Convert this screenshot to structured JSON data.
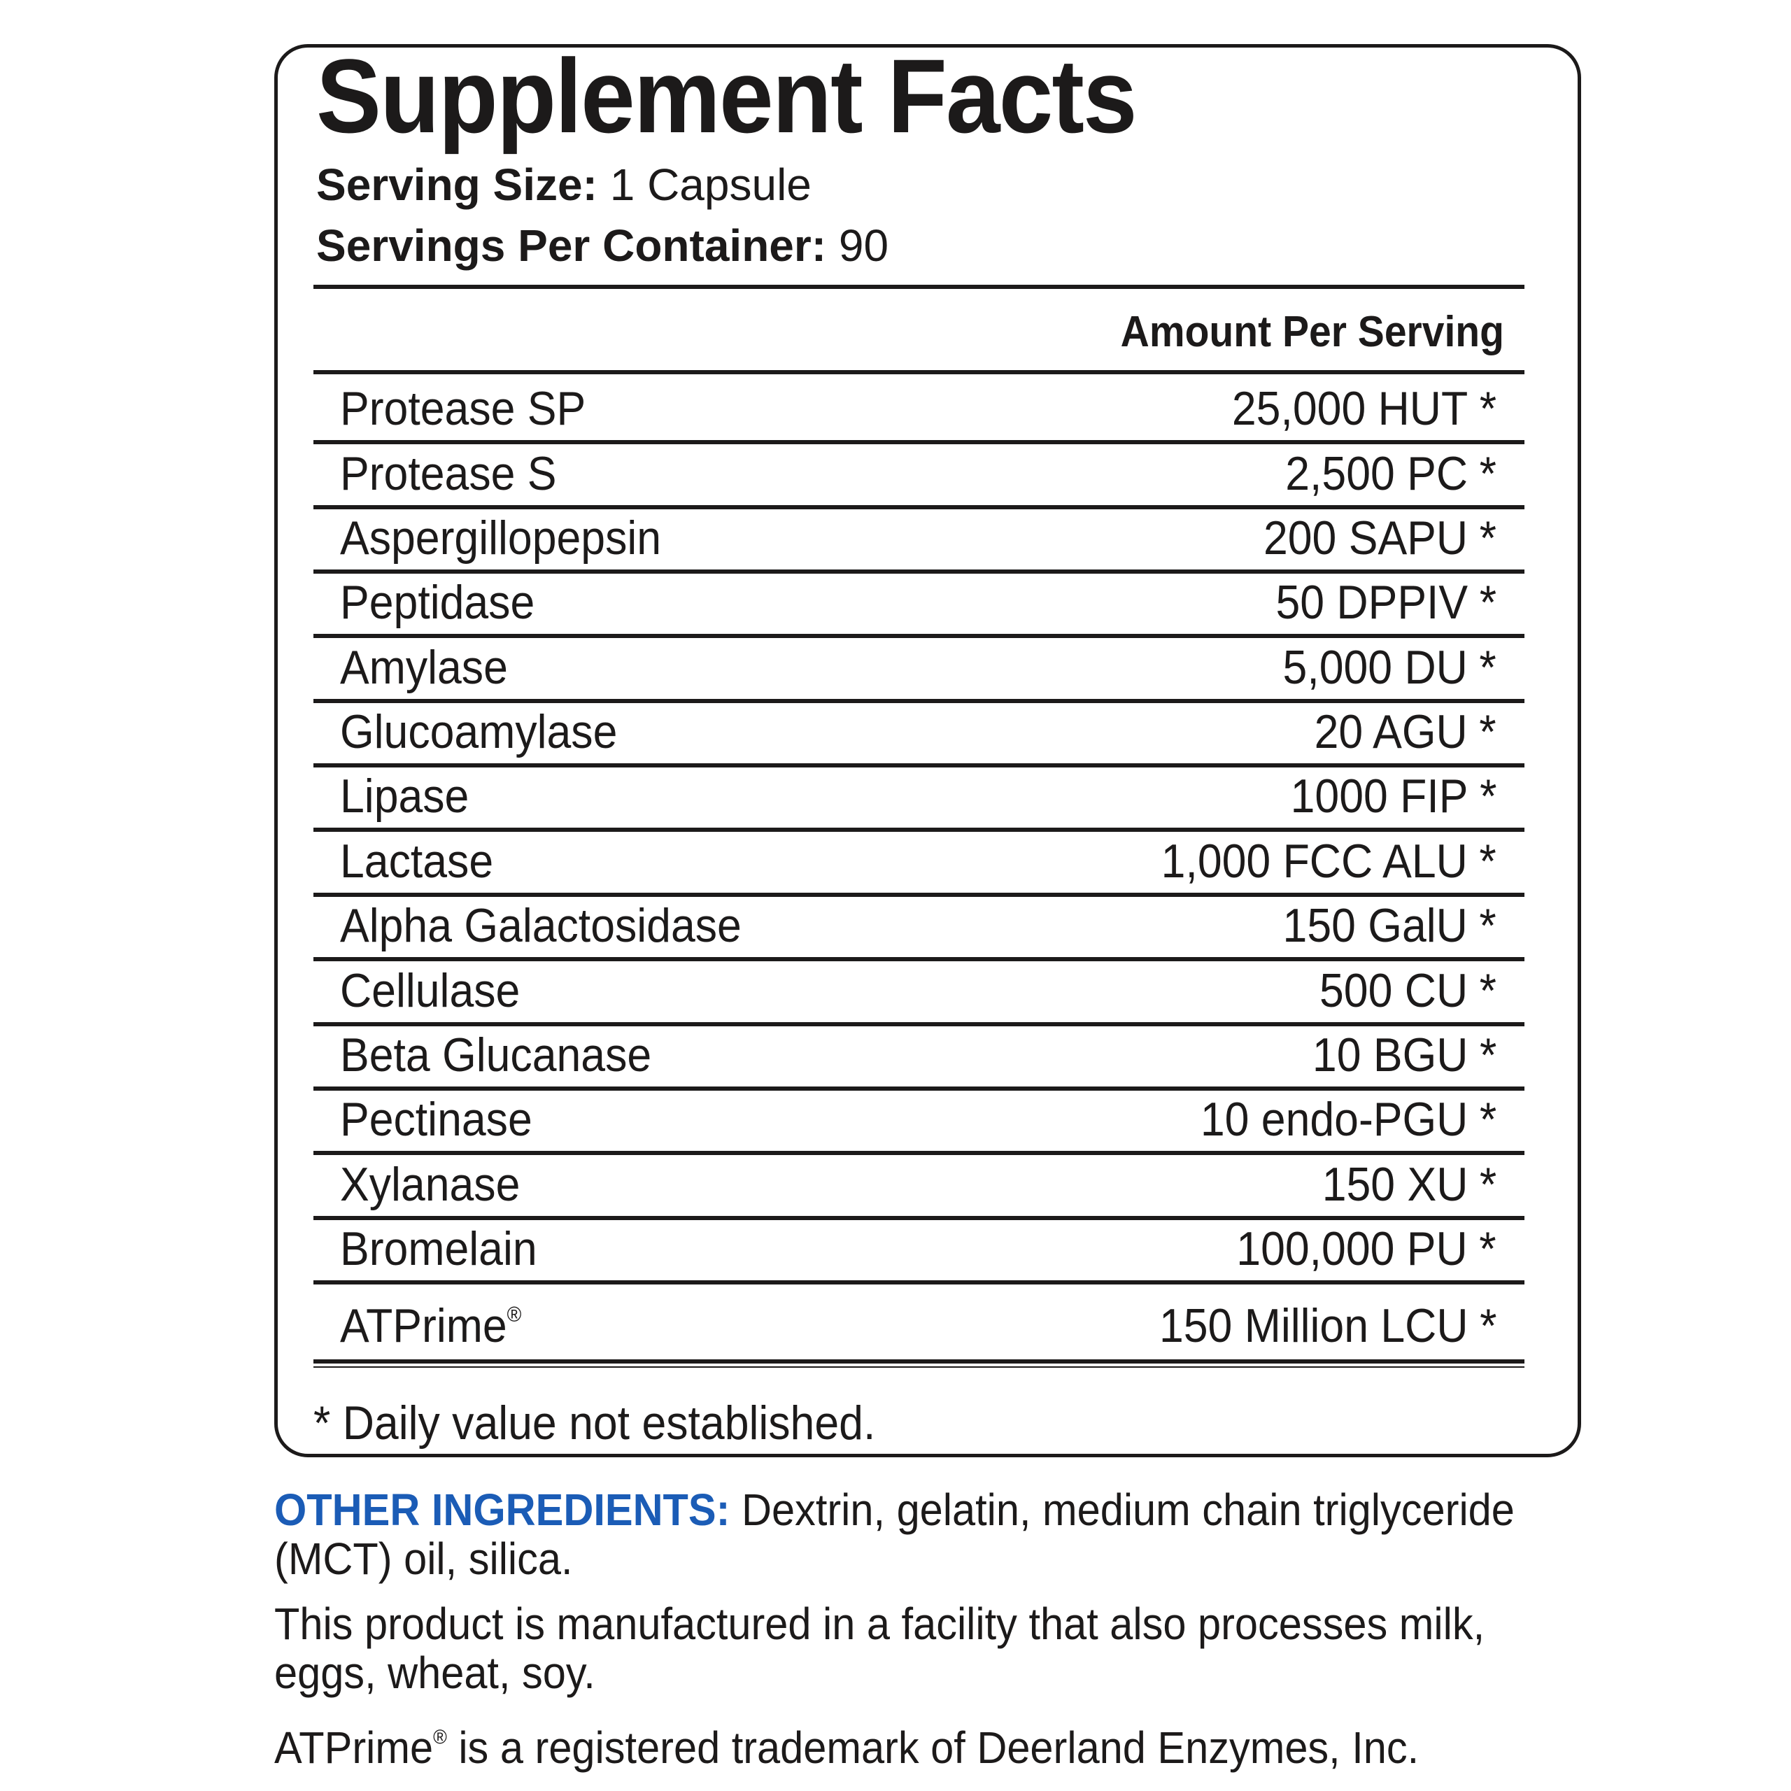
{
  "label": {
    "title": "Supplement Facts",
    "serving_size_label": "Serving Size:",
    "serving_size_value": " 1 Capsule",
    "servings_per_container_label": "Servings Per Container:",
    "servings_per_container_value": " 90",
    "amount_header": "Amount Per Serving",
    "rows": [
      {
        "name": "Protease SP",
        "amount": "25,000 HUT",
        "mark": "*"
      },
      {
        "name": "Protease S",
        "amount": "2,500 PC",
        "mark": "*"
      },
      {
        "name": "Aspergillopepsin",
        "amount": "200 SAPU",
        "mark": "*"
      },
      {
        "name": "Peptidase",
        "amount": "50 DPPIV",
        "mark": "*"
      },
      {
        "name": "Amylase",
        "amount": "5,000 DU",
        "mark": "*"
      },
      {
        "name": "Glucoamylase",
        "amount": "20 AGU",
        "mark": "*"
      },
      {
        "name": "Lipase",
        "amount": "1000 FIP",
        "mark": "*"
      },
      {
        "name": "Lactase",
        "amount": "1,000 FCC ALU",
        "mark": "*"
      },
      {
        "name": "Alpha Galactosidase",
        "amount": "150 GalU",
        "mark": "*"
      },
      {
        "name": "Cellulase",
        "amount": "500 CU",
        "mark": "*"
      },
      {
        "name": "Beta Glucanase",
        "amount": "10 BGU",
        "mark": "*"
      },
      {
        "name": "Pectinase",
        "amount": "10 endo-PGU",
        "mark": "*"
      },
      {
        "name": "Xylanase",
        "amount": "150 XU",
        "mark": "*"
      },
      {
        "name": "Bromelain",
        "amount": "100,000 PU",
        "mark": "*"
      },
      {
        "name": "ATPrime",
        "name_sup": "®",
        "amount": "150 Million LCU",
        "mark": "*"
      }
    ],
    "footnote": "* Daily value not established."
  },
  "below": {
    "other_ingredients_label": "OTHER INGREDIENTS:",
    "other_ingredients_line1": " Dextrin, gelatin, medium chain triglyceride",
    "other_ingredients_line2": "(MCT) oil, silica.",
    "facility_line1": "This product is manufactured in a facility that also processes milk,",
    "facility_line2": "eggs, wheat, soy.",
    "trademark_brand": "ATPrime",
    "trademark_sup": "®",
    "trademark_rest": " is a registered trademark of Deerland Enzymes, Inc."
  },
  "colors": {
    "text": "#1c1a1a",
    "accent_blue": "#1b5cb6",
    "background": "#ffffff"
  }
}
